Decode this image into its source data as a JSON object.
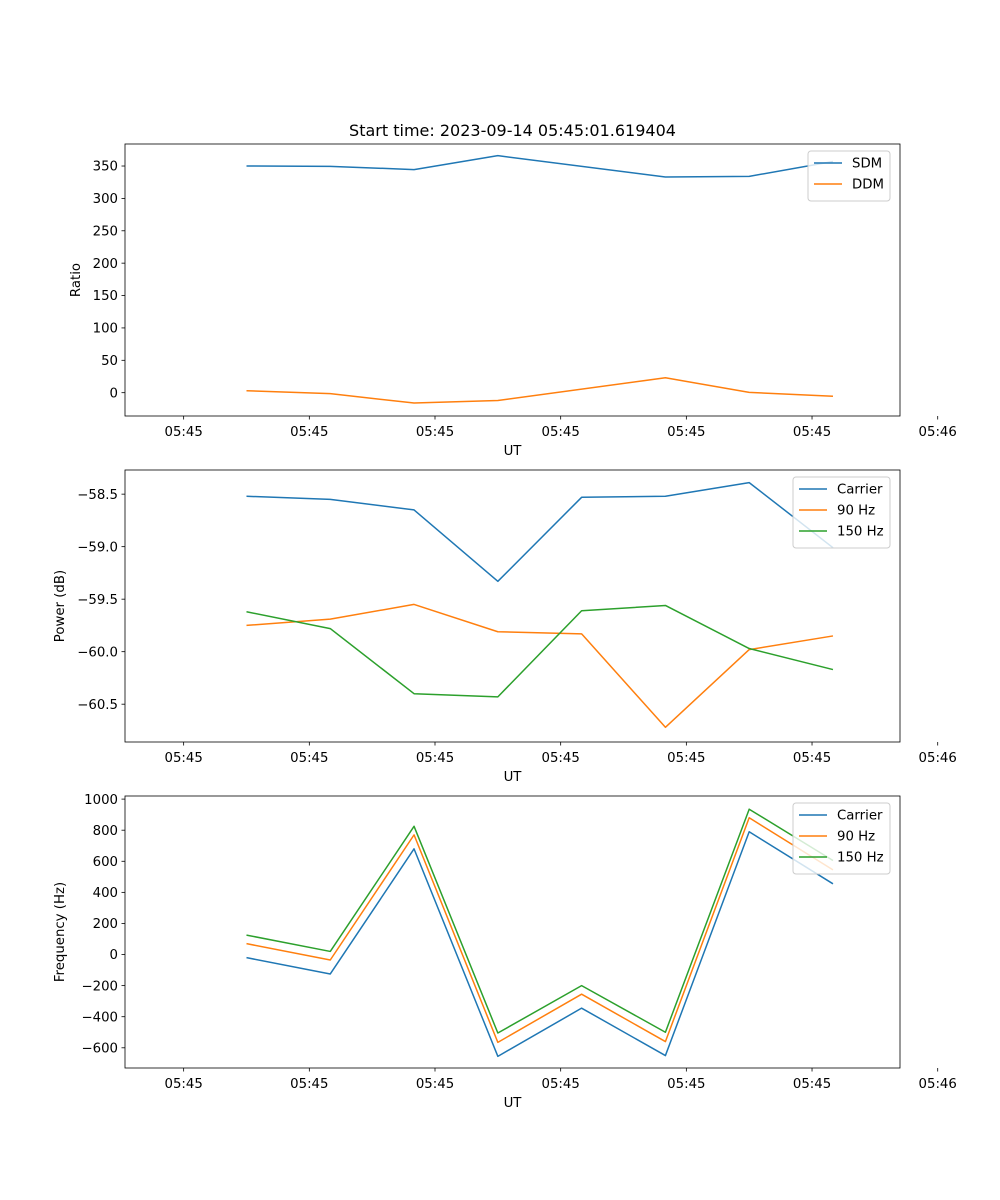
{
  "chart_data": [
    {
      "type": "line",
      "title": "Start time: 2023-09-14 05:45:01.619404",
      "xlabel": "UT",
      "ylabel": "Ratio",
      "xlim": [
        -0.7,
        8.55
      ],
      "ylim": [
        -36,
        384
      ],
      "x_ticks": [
        0,
        1.5,
        3,
        4.5,
        6,
        7.5,
        9
      ],
      "x_tick_labels": [
        "05:45",
        "05:45",
        "05:45",
        "05:45",
        "05:45",
        "05:45",
        "05:46"
      ],
      "y_ticks": [
        0,
        50,
        100,
        150,
        200,
        250,
        300,
        350
      ],
      "y_tick_labels": [
        "0",
        "50",
        "100",
        "150",
        "200",
        "250",
        "300",
        "350"
      ],
      "x": [
        0.75,
        1.75,
        2.75,
        3.75,
        4.75,
        5.75,
        6.75,
        7.75
      ],
      "legend_position": "upper-right",
      "series": [
        {
          "name": "SDM",
          "color": "#1f77b4",
          "x": [
            0.75,
            1.75,
            2.75,
            3.75,
            5.75,
            6.75,
            7.75
          ],
          "values": [
            350,
            349.5,
            344.5,
            366,
            333,
            334,
            357
          ]
        },
        {
          "name": "DDM",
          "color": "#ff7f0e",
          "x": [
            0.75,
            1.75,
            2.75,
            3.75,
            5.75,
            6.75,
            7.75
          ],
          "values": [
            3,
            -1.5,
            -16,
            -12,
            23,
            0.5,
            -5.5
          ]
        }
      ]
    },
    {
      "type": "line",
      "xlabel": "UT",
      "ylabel": "Power (dB)",
      "xlim": [
        -0.7,
        8.55
      ],
      "ylim": [
        -60.86,
        -58.27
      ],
      "x_ticks": [
        0,
        1.5,
        3,
        4.5,
        6,
        7.5,
        9
      ],
      "x_tick_labels": [
        "05:45",
        "05:45",
        "05:45",
        "05:45",
        "05:45",
        "05:45",
        "05:46"
      ],
      "y_ticks": [
        -60.5,
        -60.0,
        -59.5,
        -59.0,
        -58.5
      ],
      "y_tick_labels": [
        "−60.5",
        "−60.0",
        "−59.5",
        "−59.0",
        "−58.5"
      ],
      "legend_position": "upper-right",
      "series": [
        {
          "name": "Carrier",
          "color": "#1f77b4",
          "x": [
            0.75,
            1.75,
            2.75,
            3.75,
            4.75,
            5.75,
            6.75,
            7.75
          ],
          "values": [
            -58.52,
            -58.55,
            -58.65,
            -59.33,
            -58.53,
            -58.52,
            -58.39,
            -59.01
          ]
        },
        {
          "name": "90 Hz",
          "color": "#ff7f0e",
          "x": [
            0.75,
            1.75,
            2.75,
            3.75,
            4.75,
            5.75,
            6.75,
            7.75
          ],
          "values": [
            -59.75,
            -59.69,
            -59.55,
            -59.81,
            -59.83,
            -60.72,
            -59.98,
            -59.85
          ]
        },
        {
          "name": "150 Hz",
          "color": "#2ca02c",
          "x": [
            0.75,
            1.75,
            2.75,
            3.75,
            4.75,
            5.75,
            6.75,
            7.75
          ],
          "values": [
            -59.62,
            -59.78,
            -60.4,
            -60.43,
            -59.61,
            -59.56,
            -59.97,
            -60.17
          ]
        }
      ]
    },
    {
      "type": "line",
      "xlabel": "UT",
      "ylabel": "Frequency (Hz)",
      "xlim": [
        -0.7,
        8.55
      ],
      "ylim": [
        -730,
        1020
      ],
      "x_ticks": [
        0,
        1.5,
        3,
        4.5,
        6,
        7.5,
        9
      ],
      "x_tick_labels": [
        "05:45",
        "05:45",
        "05:45",
        "05:45",
        "05:45",
        "05:45",
        "05:46"
      ],
      "y_ticks": [
        -600,
        -400,
        -200,
        0,
        200,
        400,
        600,
        800,
        1000
      ],
      "y_tick_labels": [
        "−600",
        "−400",
        "−200",
        "0",
        "200",
        "400",
        "600",
        "800",
        "1000"
      ],
      "legend_position": "upper-right",
      "series": [
        {
          "name": "Carrier",
          "color": "#1f77b4",
          "x": [
            0.75,
            1.75,
            2.75,
            3.75,
            4.75,
            5.75,
            6.75,
            7.75
          ],
          "values": [
            -20,
            -125,
            680,
            -655,
            -345,
            -650,
            790,
            455
          ]
        },
        {
          "name": "90 Hz",
          "color": "#ff7f0e",
          "x": [
            0.75,
            1.75,
            2.75,
            3.75,
            4.75,
            5.75,
            6.75,
            7.75
          ],
          "values": [
            70,
            -35,
            770,
            -565,
            -255,
            -560,
            880,
            545
          ]
        },
        {
          "name": "150 Hz",
          "color": "#2ca02c",
          "x": [
            0.75,
            1.75,
            2.75,
            3.75,
            4.75,
            5.75,
            6.75,
            7.75
          ],
          "values": [
            125,
            20,
            825,
            -505,
            -200,
            -500,
            935,
            605
          ]
        }
      ]
    }
  ]
}
